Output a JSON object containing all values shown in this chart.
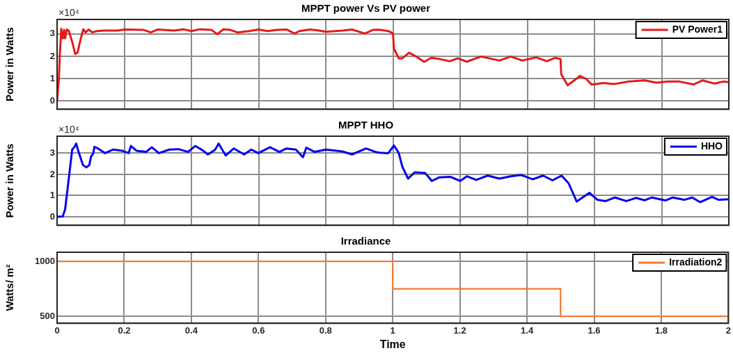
{
  "chart_data": [
    {
      "type": "line",
      "title": "MPPT power Vs PV power",
      "ylabel": "Power in Watts",
      "annotations": [
        "×10⁴"
      ],
      "xlim": [
        0,
        2
      ],
      "xticks": [
        0,
        0.2,
        0.4,
        0.6,
        0.8,
        1,
        1.2,
        1.4,
        1.6,
        1.8,
        2
      ],
      "ylim": [
        -0.37,
        3.65
      ],
      "yticks": [
        0,
        1,
        2,
        3
      ],
      "grid": true,
      "legend": "top right",
      "tick_labels": "y",
      "x": [
        0,
        0.0056,
        0.008,
        0.0125,
        0.017,
        0.021,
        0.024,
        0.029,
        0.035,
        0.045,
        0.054,
        0.061,
        0.07,
        0.078,
        0.085,
        0.094,
        0.105,
        0.118,
        0.139,
        0.181,
        0.2,
        0.258,
        0.279,
        0.3,
        0.348,
        0.376,
        0.4,
        0.425,
        0.46,
        0.477,
        0.495,
        0.516,
        0.537,
        0.571,
        0.6,
        0.627,
        0.655,
        0.683,
        0.707,
        0.721,
        0.753,
        0.78,
        0.8,
        0.85,
        0.878,
        0.916,
        0.94,
        0.959,
        0.986,
        1.0,
        1.003,
        1.017,
        1.028,
        1.048,
        1.069,
        1.093,
        1.114,
        1.138,
        1.169,
        1.193,
        1.22,
        1.262,
        1.317,
        1.351,
        1.385,
        1.427,
        1.458,
        1.482,
        1.499,
        1.501,
        1.52,
        1.537,
        1.557,
        1.575,
        1.592,
        1.626,
        1.66,
        1.702,
        1.75,
        1.785,
        1.819,
        1.853,
        1.895,
        1.922,
        1.957,
        1.984,
        2.0
      ],
      "series": [
        {
          "name": "PV Power1",
          "color": "#e41a1c",
          "values": [
            0,
            1.06,
            2.0,
            3.23,
            2.8,
            3.18,
            2.8,
            3.2,
            3.13,
            2.65,
            2.1,
            2.17,
            2.76,
            3.21,
            3.07,
            3.2,
            3.07,
            3.13,
            3.15,
            3.15,
            3.2,
            3.18,
            3.07,
            3.2,
            3.15,
            3.21,
            3.13,
            3.21,
            3.18,
            2.99,
            3.21,
            3.18,
            3.07,
            3.13,
            3.2,
            3.13,
            3.18,
            3.2,
            3.02,
            3.13,
            3.2,
            3.15,
            3.1,
            3.15,
            3.2,
            3.02,
            3.18,
            3.19,
            3.13,
            3.03,
            2.35,
            1.91,
            1.91,
            2.16,
            1.99,
            1.75,
            1.93,
            1.88,
            1.78,
            1.91,
            1.76,
            1.99,
            1.81,
            1.99,
            1.81,
            1.95,
            1.78,
            1.93,
            1.88,
            1.2,
            0.7,
            0.89,
            1.12,
            0.99,
            0.73,
            0.8,
            0.76,
            0.87,
            0.92,
            0.82,
            0.87,
            0.87,
            0.74,
            0.92,
            0.78,
            0.87,
            0.84
          ]
        }
      ]
    },
    {
      "type": "line",
      "title": "MPPT HHO",
      "ylabel": "Power in Watts",
      "annotations": [
        "×10⁴"
      ],
      "xlim": [
        0,
        2
      ],
      "xticks": [
        0,
        0.2,
        0.4,
        0.6,
        0.8,
        1,
        1.2,
        1.4,
        1.6,
        1.8,
        2
      ],
      "ylim": [
        -0.4,
        3.8
      ],
      "yticks": [
        0,
        1,
        2,
        3
      ],
      "grid": true,
      "legend": "top right",
      "tick_labels": "y",
      "x": [
        0,
        0.017,
        0.024,
        0.035,
        0.045,
        0.052,
        0.057,
        0.064,
        0.077,
        0.087,
        0.096,
        0.101,
        0.108,
        0.111,
        0.122,
        0.143,
        0.167,
        0.195,
        0.213,
        0.22,
        0.237,
        0.265,
        0.282,
        0.303,
        0.334,
        0.362,
        0.39,
        0.411,
        0.432,
        0.449,
        0.47,
        0.481,
        0.502,
        0.526,
        0.557,
        0.578,
        0.599,
        0.634,
        0.662,
        0.683,
        0.711,
        0.732,
        0.742,
        0.767,
        0.801,
        0.85,
        0.878,
        0.92,
        0.948,
        0.959,
        0.986,
        1.003,
        1.017,
        1.028,
        1.045,
        1.065,
        1.096,
        1.116,
        1.138,
        1.172,
        1.2,
        1.22,
        1.248,
        1.282,
        1.317,
        1.351,
        1.382,
        1.416,
        1.447,
        1.475,
        1.502,
        1.523,
        1.547,
        1.585,
        1.609,
        1.633,
        1.661,
        1.695,
        1.723,
        1.75,
        1.771,
        1.812,
        1.833,
        1.867,
        1.891,
        1.915,
        1.95,
        1.97,
        2.0
      ],
      "series": [
        {
          "name": "HHO",
          "color": "#0000ee",
          "values": [
            0,
            0.02,
            0.36,
            1.82,
            3.17,
            3.3,
            3.45,
            3.06,
            2.44,
            2.33,
            2.44,
            2.83,
            3.0,
            3.3,
            3.22,
            3.0,
            3.17,
            3.11,
            3.0,
            3.34,
            3.11,
            3.06,
            3.28,
            3.0,
            3.17,
            3.19,
            3.06,
            3.34,
            3.15,
            2.94,
            3.15,
            3.45,
            2.89,
            3.22,
            2.94,
            3.17,
            3.0,
            3.28,
            3.06,
            3.22,
            3.17,
            2.81,
            3.26,
            3.06,
            3.17,
            3.08,
            2.94,
            3.22,
            3.06,
            3.02,
            3.0,
            3.36,
            3.02,
            2.36,
            1.8,
            2.1,
            2.06,
            1.69,
            1.86,
            1.88,
            1.69,
            1.91,
            1.74,
            1.94,
            1.8,
            1.91,
            1.97,
            1.77,
            1.94,
            1.72,
            1.94,
            1.58,
            0.72,
            1.13,
            0.8,
            0.74,
            0.91,
            0.74,
            0.89,
            0.78,
            0.91,
            0.77,
            0.91,
            0.8,
            0.91,
            0.69,
            0.94,
            0.8,
            0.83
          ]
        }
      ]
    },
    {
      "type": "step",
      "title": "Irradiance",
      "xlabel": "Time",
      "ylabel": "Watts/ m²",
      "xlim": [
        0,
        2
      ],
      "xticks": [
        0,
        0.2,
        0.4,
        0.6,
        0.8,
        1,
        1.2,
        1.4,
        1.6,
        1.8,
        2
      ],
      "ylim": [
        436,
        1083
      ],
      "yticks": [
        500,
        1000
      ],
      "grid": true,
      "legend": "top right",
      "x": [
        0,
        1,
        1.5,
        2
      ],
      "series": [
        {
          "name": "Irradiation2",
          "color": "#f4792f",
          "values": [
            1000,
            750,
            500,
            500
          ]
        }
      ]
    }
  ]
}
